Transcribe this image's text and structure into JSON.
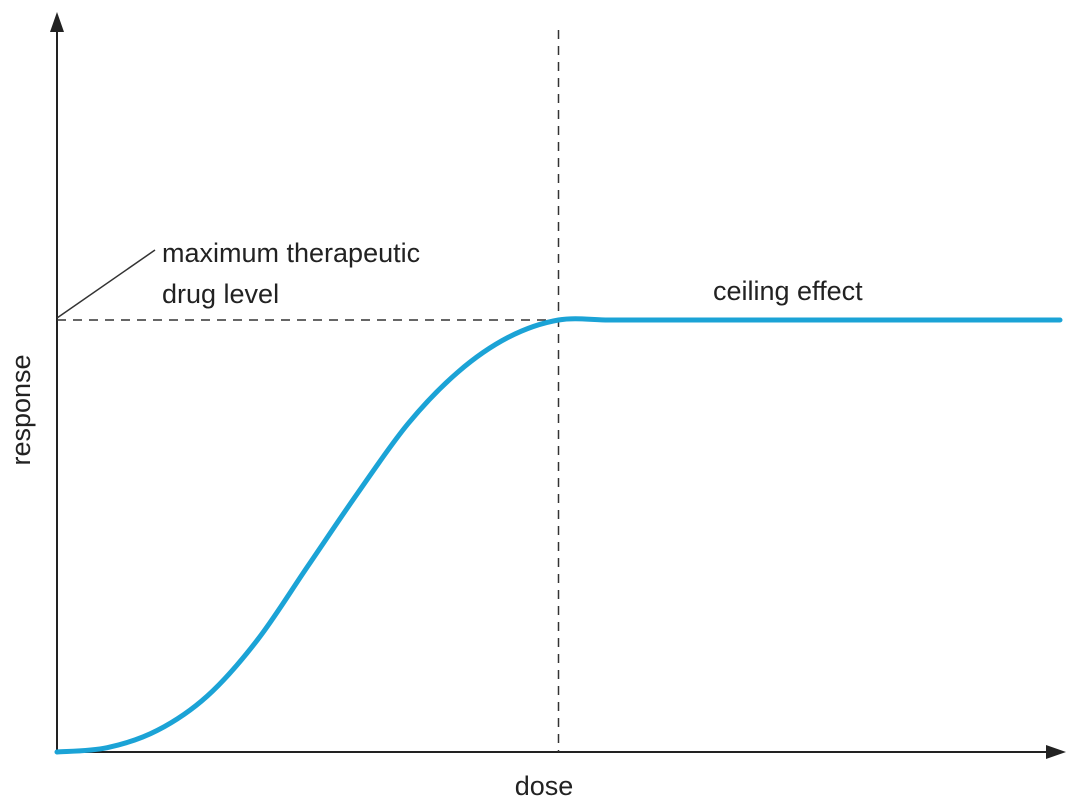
{
  "chart_data": {
    "type": "line",
    "title": "",
    "xlabel": "dose",
    "ylabel": "response",
    "xlim": [
      0,
      1
    ],
    "ylim": [
      0,
      1
    ],
    "grid": false,
    "series": [
      {
        "color": "#1ba3d6",
        "x": [
          0,
          0.05,
          0.1,
          0.15,
          0.2,
          0.25,
          0.3,
          0.35,
          0.4,
          0.45,
          0.5,
          0.55,
          0.6,
          0.7,
          0.8,
          0.9,
          1.0
        ],
        "y": [
          0,
          0.01,
          0.05,
          0.13,
          0.26,
          0.43,
          0.6,
          0.76,
          0.88,
          0.96,
          1.0,
          1.0,
          1.0,
          1.0,
          1.0,
          1.0,
          1.0
        ]
      }
    ],
    "reference_lines": {
      "max_level_y": 1.0,
      "ceiling_start_x": 0.5
    },
    "annotations": {
      "max_label_line1": "maximum therapeutic",
      "max_label_line2": "drug level",
      "ceiling_label": "ceiling effect"
    }
  }
}
